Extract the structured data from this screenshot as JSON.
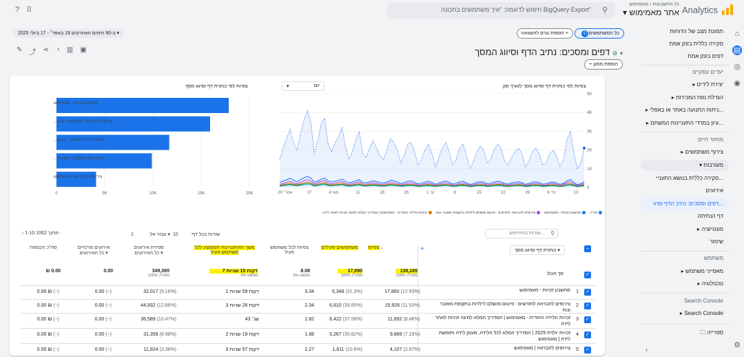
{
  "header": {
    "product": "Analytics",
    "crumb": "כל החשבונות › מאמימוש",
    "property": "אתר מאמימוש",
    "search_placeholder": "חיפוש לדוגמה: \"איך משתמשים בתכונה BigQuery Export\""
  },
  "nav": {
    "items": [
      {
        "label": "תמונת מצב של הדוחות"
      },
      {
        "label": "סקירה כללית בזמן אמת"
      },
      {
        "label": "דפים בזמן אמת"
      },
      {
        "label": "יעדים עסקיים",
        "section": true
      },
      {
        "label": "▸ יצירת לידים"
      },
      {
        "label": "▸ הגדלת נפח המכירות"
      },
      {
        "label": "▸ ניתוח התנועה באתר או באפלי..."
      },
      {
        "label": "▸ עיון במדדי התעניינות המשתמ..."
      },
      {
        "label": "מחזור חיים",
        "section": true
      },
      {
        "label": "▸ צירוף משתמשים"
      },
      {
        "label": "▾ מעורבות"
      },
      {
        "label": "סקירה כללית בנושא התעניי..."
      },
      {
        "label": "אירועים"
      },
      {
        "label": "דפים ומסכים: נתיב הדף וסיוו..."
      },
      {
        "label": "דף הנחיתה"
      },
      {
        "label": "▸ מונטיזציה"
      },
      {
        "label": "שימור"
      },
      {
        "label": "משתמש",
        "section": true
      },
      {
        "label": "▸ מאפייני משתמש"
      },
      {
        "label": "▸ טכנולוגיה"
      },
      {
        "label": "Search Console",
        "section": true
      },
      {
        "label": "▸ Search Console"
      }
    ],
    "library": "ספרייה"
  },
  "toolbar": {
    "all_users": "כל המשתמשים",
    "add_comparison": "הוספת גורם להשוואה +",
    "date_range": "ב-90 הימים האחרונים 19 באפר׳ - 17 ביולי 2025 ▾"
  },
  "page": {
    "title": "דפים ומסכים: נתיב הדף וסיווג המסך",
    "add_filter": "+ הוספת מסנן"
  },
  "line_chart": {
    "title": "צפיות לפי כותרת דף וסיווג מסך לאורך זמן",
    "granularity": "יום"
  },
  "bar_chart_title": "צפיות לפי כותרת דף וסיווג מסך",
  "chart_data": [
    {
      "type": "bar",
      "title": "צפיות לפי כותרת דף וסיווג מסך",
      "categories": [
        "מחשבון זכויות - מאמימוש",
        "צירופים להבראה לחודשים : פיטו...",
        "זכויות הלידה החודית - מאמ...",
        "זכויות יולדת 2025 | המדריך...",
        "צירופים להבראה | מאמימוש"
      ],
      "values": [
        17860,
        15926,
        11692,
        9889,
        4107
      ],
      "xticks": [
        "0",
        "5K",
        "10K",
        "15K",
        "20K"
      ],
      "xlim": [
        0,
        20000
      ]
    },
    {
      "type": "line",
      "title": "צפיות לפי כותרת דף וסיווג מסך לאורך זמן",
      "xticks": [
        "20 אפר׳",
        "27",
        "4 מאי",
        "11",
        "18",
        "25",
        "1 יוני",
        "8",
        "15",
        "22",
        "29",
        "6 יולי",
        "13"
      ],
      "yticks": [
        "0",
        "1K",
        "2K",
        "3K",
        "4K",
        "5K"
      ],
      "ylim": [
        0,
        5000
      ],
      "series": [
        {
          "name": "סה\"כ",
          "color": "#4285f4",
          "values": [
            1500,
            2100,
            2600,
            3100,
            2400,
            2000,
            2800,
            3600,
            4100,
            3500,
            1800,
            2500,
            3400,
            3700,
            2300,
            1900,
            2400,
            2700,
            3200,
            2200,
            1500,
            1900,
            2500,
            3000,
            1800,
            1600,
            2100,
            2500,
            2100,
            1700,
            1500,
            2000,
            2600,
            2400,
            2000,
            1300,
            1700,
            2300,
            2400,
            1900,
            1200,
            1500,
            2000,
            2300,
            1800,
            1100,
            1600,
            2100,
            2400,
            1900,
            1200,
            1500,
            2100,
            2300,
            1700,
            1000,
            1400,
            1900,
            2200,
            2000,
            1300,
            1500,
            2000,
            2300,
            2100,
            1400,
            1200,
            1600,
            1900,
            2100,
            1800,
            1100,
            1400,
            1900,
            2100,
            1800,
            1200,
            1300,
            1800,
            2000,
            1700,
            1100,
            1500,
            2500,
            3000,
            1900,
            1000,
            1300,
            2100
          ]
        },
        {
          "name": "מחשבון זכויות - מאמימוש",
          "color": "#1a73e8",
          "values": [
            250,
            350,
            400,
            500,
            380,
            300,
            420,
            520,
            580,
            500,
            280,
            330,
            450,
            500,
            350,
            290,
            340,
            380,
            450,
            330,
            240,
            290,
            360,
            420,
            270,
            250,
            310,
            360,
            310,
            260,
            230,
            290,
            380,
            350,
            300,
            200,
            260,
            330,
            350,
            280,
            180,
            230,
            290,
            330,
            270,
            170,
            240,
            300,
            340,
            280,
            180,
            230,
            300,
            330,
            250,
            160,
            210,
            280,
            310,
            290,
            200,
            230,
            290,
            330,
            300,
            210,
            180,
            240,
            280,
            300,
            260,
            170,
            210,
            280,
            300,
            260,
            180,
            200,
            260,
            290,
            250,
            170,
            220,
            350,
            420,
            280,
            150,
            200,
            300
          ]
        },
        {
          "name": "צירופים להבראה לחודשים : פיטו",
          "color": "#a142f4",
          "values": [
            150,
            220,
            280,
            330,
            250,
            200,
            280,
            360,
            420,
            350,
            180,
            250,
            330,
            380,
            240,
            190,
            250,
            280,
            330,
            220,
            160,
            200,
            260,
            310,
            190,
            170,
            220,
            260,
            220,
            180,
            160,
            210,
            270,
            250,
            210,
            140,
            180,
            240,
            250,
            200,
            130,
            160,
            210,
            240,
            190,
            120,
            170,
            220,
            250,
            200,
            130,
            160,
            220,
            240,
            180,
            110,
            150,
            200,
            230,
            210,
            140,
            160,
            210,
            240,
            220,
            150,
            130,
            170,
            200,
            220,
            190,
            120,
            150,
            200,
            220,
            190,
            130,
            140,
            190,
            210,
            180,
            120,
            160,
            260,
            310,
            200,
            110,
            140,
            220
          ]
        },
        {
          "name": "זכויות הלידה החודית",
          "color": "#e37400",
          "values": [
            100,
            160,
            200,
            240,
            180,
            150,
            200,
            260,
            300,
            250,
            130,
            180,
            240,
            270,
            170,
            140,
            180,
            200,
            240,
            160,
            110,
            140,
            190,
            220,
            140,
            120,
            160,
            190,
            160,
            130,
            110,
            150,
            190,
            180,
            150,
            100,
            130,
            170,
            180,
            140,
            90,
            110,
            150,
            170,
            140,
            80,
            120,
            160,
            180,
            140,
            90,
            110,
            160,
            170,
            130,
            80,
            110,
            140,
            160,
            150,
            100,
            110,
            150,
            170,
            160,
            110,
            90,
            120,
            140,
            160,
            140,
            80,
            110,
            140,
            160,
            140,
            90,
            100,
            140,
            150,
            130,
            80,
            110,
            190,
            220,
            140,
            70,
            100,
            160
          ]
        },
        {
          "name": "צירופים להבראה | מאמימוש",
          "color": "#12b5cb",
          "values": [
            60,
            90,
            110,
            130,
            100,
            80,
            110,
            140,
            160,
            140,
            70,
            100,
            130,
            150,
            90,
            80,
            100,
            110,
            130,
            90,
            60,
            80,
            100,
            120,
            80,
            70,
            90,
            100,
            90,
            70,
            60,
            80,
            100,
            100,
            80,
            60,
            70,
            90,
            100,
            80,
            50,
            60,
            80,
            90,
            70,
            50,
            70,
            90,
            100,
            80,
            50,
            60,
            90,
            90,
            70,
            40,
            60,
            80,
            90,
            80,
            50,
            60,
            80,
            90,
            90,
            60,
            50,
            70,
            80,
            90,
            80,
            50,
            60,
            80,
            90,
            80,
            50,
            60,
            80,
            80,
            70,
            50,
            60,
            100,
            120,
            80,
            40,
            60,
            90
          ]
        },
        {
          "name": "זכויות יולדת 2025",
          "color": "#188038",
          "values": [
            80,
            120,
            150,
            180,
            140,
            110,
            150,
            190,
            220,
            190,
            100,
            130,
            180,
            200,
            130,
            100,
            130,
            150,
            180,
            120,
            90,
            110,
            140,
            170,
            100,
            90,
            120,
            140,
            120,
            100,
            80,
            110,
            150,
            130,
            110,
            80,
            100,
            130,
            130,
            100,
            70,
            90,
            110,
            130,
            100,
            60,
            90,
            120,
            130,
            100,
            70,
            90,
            120,
            130,
            100,
            60,
            80,
            110,
            120,
            110,
            70,
            80,
            110,
            130,
            120,
            80,
            70,
            90,
            110,
            120,
            100,
            60,
            80,
            110,
            120,
            100,
            70,
            80,
            100,
            110,
            100,
            60,
            80,
            140,
            170,
            110,
            60,
            80,
            120
          ]
        }
      ]
    }
  ],
  "legend": [
    "סה\"כ",
    "מחשבון זכויות - מאמימוש",
    "צירופים להבראה לחודשים : פיטום מושלם לילדות בתקופת מאובר ונות",
    "זכויות הלידה החודית - מאמימוש | המדריך המלא למיצוי זכויות לאחר לידה"
  ],
  "table": {
    "search_placeholder": "שורות בתחיפוש...",
    "rows_per_page_label": "שורות בכל דף:",
    "rows_per_page": "10",
    "goto_label": "עבור אל:",
    "goto_value": "1",
    "range": "1-10 מתוך 1062",
    "dimension": "כותרת דף וסיווג מסך",
    "headers": [
      "צפיות",
      "משתמשים פעילים",
      "צפיות לכל משתמש פעיל",
      "משך ההתעניינות הממוצע לכל משתמש פעיל",
      "ספירת אירועים",
      "אירועים מרכזיים",
      "סה\"כ הכנסות"
    ],
    "subheaders": [
      "",
      "",
      "",
      "",
      "כל האירועים ▾",
      "כל האירועים ▾",
      ""
    ],
    "total_label": "סך הכול",
    "totals": [
      "138,165",
      "17,090",
      "8.08",
      "7 דקות 15 שניות",
      "349,365",
      "0.00",
      "₪ 0.00"
    ],
    "totals_sub": [
      "100% מסה\"כ",
      "100% מסה\"כ",
      "ממוצע 0%",
      "ממוצע 0%",
      "100% מסה\"כ",
      "",
      ""
    ],
    "rows": [
      {
        "n": "1",
        "title": "מחשבון זכויות - מאמימוש",
        "views": "17,860",
        "views_pct": "(12.93%)",
        "users": "5,349",
        "users_pct": "(31.3%)",
        "vpu": "3.34",
        "eng": "1 דקות 59 שניות",
        "events": "32,017",
        "events_pct": "(9.16%)",
        "key": "0.00",
        "key_pct": "(−)",
        "rev": "0.00 ₪",
        "rev_pct": "(−)"
      },
      {
        "n": "2",
        "title": "צירופים להבראה לחודשים : פיטום מושלם לילדות בתקופת מאובר ונות",
        "views": "15,926",
        "views_pct": "(11.53%)",
        "users": "6,810",
        "users_pct": "(39.85%)",
        "vpu": "2.34",
        "eng": "3 דקות 26 שניות",
        "events": "44,932",
        "events_pct": "(12.86%)",
        "key": "0.00",
        "key_pct": "(−)",
        "rev": "0.00 ₪",
        "rev_pct": "(−)"
      },
      {
        "n": "3",
        "title": "זכויות הלידה החודית - מאמימוש | המדריך המלא למיצוי זכויות לאחר לידה",
        "views": "11,692",
        "views_pct": "(8.46%)",
        "users": "6,422",
        "users_pct": "(37.58%)",
        "vpu": "1.82",
        "eng": "43 שנ׳",
        "events": "36,589",
        "events_pct": "(10.47%)",
        "key": "0.00",
        "key_pct": "(−)",
        "rev": "0.00 ₪",
        "rev_pct": "(−)"
      },
      {
        "n": "4",
        "title": "זכויות יולדת 2025 | המדריך המלא לכל הלידה, מענק לידה ותופשת לידה | מאמימוש",
        "views": "9,889",
        "views_pct": "(7.16%)",
        "users": "5,267",
        "users_pct": "(30.82%)",
        "vpu": "1.88",
        "eng": "2 דקות 19 שניות",
        "events": "31,359",
        "events_pct": "(8.98%)",
        "key": "0.00",
        "key_pct": "(−)",
        "rev": "0.00 ₪",
        "rev_pct": "(−)"
      },
      {
        "n": "5",
        "title": "צירופים להבראה | מאמימוש",
        "views": "4,107",
        "views_pct": "(2.97%)",
        "users": "1,811",
        "users_pct": "(10.6%)",
        "vpu": "2.27",
        "eng": "3 דקות 57 שניות",
        "events": "11,824",
        "events_pct": "(3.38%)",
        "key": "0.00",
        "key_pct": "(−)",
        "rev": "0.00 ₪",
        "rev_pct": "(−)"
      }
    ]
  }
}
